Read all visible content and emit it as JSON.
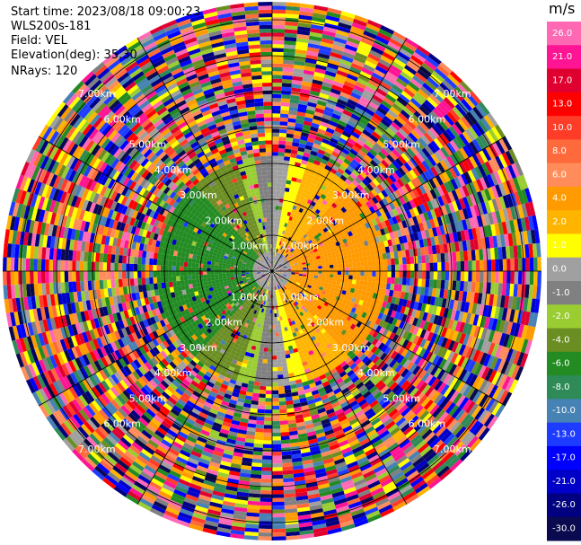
{
  "info": {
    "start_time": "Start time: 2023/08/18 09:00:23",
    "instrument": "WLS200s-181",
    "field": "Field: VEL",
    "elevation": "Elevation(deg): 35.30",
    "nrays": "NRays: 120"
  },
  "chart_data": {
    "type": "heatmap",
    "projection": "polar PPI",
    "field": "VEL",
    "unit": "m/s",
    "nrays": 120,
    "range_ring_labels": [
      "1.00km",
      "2.00km",
      "3.00km",
      "4.00km",
      "5.00km",
      "6.00km",
      "7.00km"
    ],
    "colorbar": {
      "title": "m/s",
      "ticks": [
        "26.0",
        "21.0",
        "17.0",
        "13.0",
        "10.0",
        "8.0",
        "6.0",
        "4.0",
        "2.0",
        "1.0",
        "0.0",
        "-1.0",
        "-2.0",
        "-4.0",
        "-6.0",
        "-8.0",
        "-10.0",
        "-13.0",
        "-17.0",
        "-21.0",
        "-26.0",
        "-30.0"
      ],
      "colors": [
        "#ff69b4",
        "#ff1493",
        "#e00030",
        "#ff0000",
        "#ff3c28",
        "#ff6a3c",
        "#ff8c5a",
        "#ff9a00",
        "#ffb400",
        "#ffff00",
        "#a0a0a0",
        "#808080",
        "#9acd32",
        "#6b8e23",
        "#228b22",
        "#2e8b57",
        "#4682b4",
        "#1e3cff",
        "#0000ff",
        "#0000c8",
        "#000080",
        "#0a0a50"
      ]
    }
  }
}
